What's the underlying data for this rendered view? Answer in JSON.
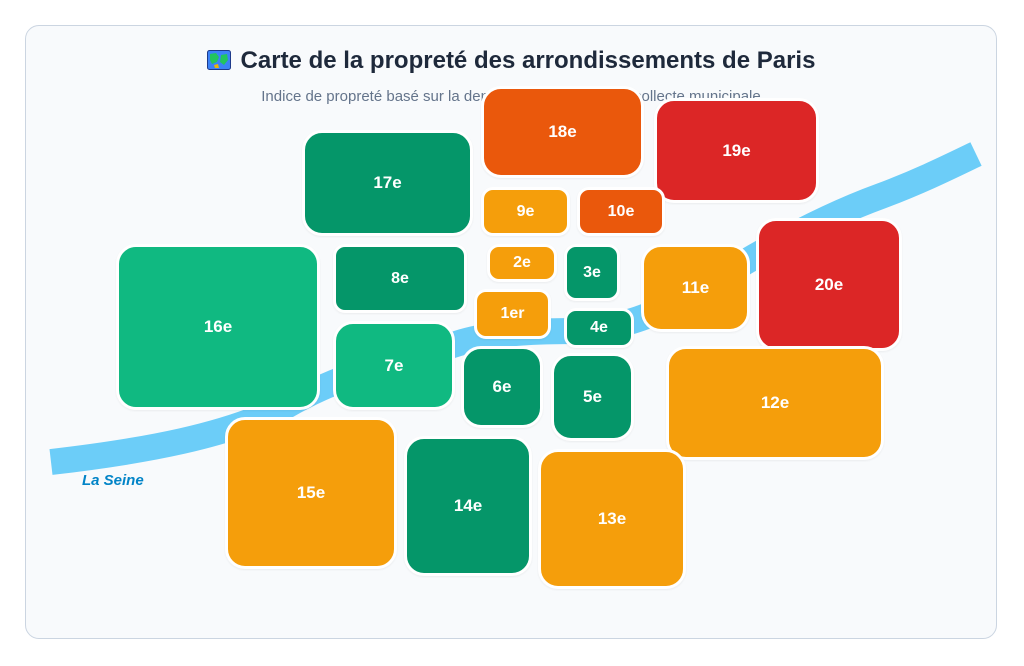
{
  "header": {
    "title": "Carte de la propreté des arrondissements de Paris",
    "title_icon": "map-icon",
    "subtitle": "Indice de propreté basé sur la densité des déchets et la collecte municipale"
  },
  "river": {
    "label": "La Seine",
    "color": "#6ccdf8"
  },
  "colors": {
    "dark_green": "#059669",
    "green": "#10b981",
    "amber": "#f59e0b",
    "orange": "#ea580c",
    "red": "#dc2626"
  },
  "arrondissements": {
    "a1": "1er",
    "a2": "2e",
    "a3": "3e",
    "a4": "4e",
    "a5": "5e",
    "a6": "6e",
    "a7": "7e",
    "a8": "8e",
    "a9": "9e",
    "a10": "10e",
    "a11": "11e",
    "a12": "12e",
    "a13": "13e",
    "a14": "14e",
    "a15": "15e",
    "a16": "16e",
    "a17": "17e",
    "a18": "18e",
    "a19": "19e",
    "a20": "20e"
  }
}
